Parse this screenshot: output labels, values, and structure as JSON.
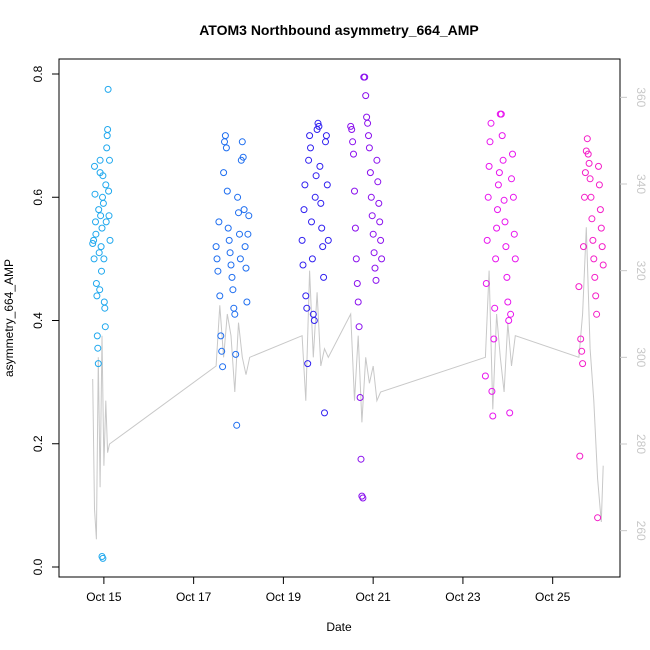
{
  "chart_data": {
    "type": "scatter",
    "title": "ATOM3 Northbound asymmetry_664_AMP",
    "xlabel": "Date",
    "ylabel": "asymmetry_664_AMP",
    "xlim": [
      "2023-10-14T00:00",
      "2023-10-26T12:00"
    ],
    "ylim": [
      0.0,
      0.8
    ],
    "y2lim": [
      250,
      370
    ],
    "x_ticks": [
      {
        "date": "2023-10-15T00:00",
        "label": "Oct 15"
      },
      {
        "date": "2023-10-17T00:00",
        "label": "Oct 17"
      },
      {
        "date": "2023-10-19T00:00",
        "label": "Oct 19"
      },
      {
        "date": "2023-10-21T00:00",
        "label": "Oct 21"
      },
      {
        "date": "2023-10-23T00:00",
        "label": "Oct 23"
      },
      {
        "date": "2023-10-25T00:00",
        "label": "Oct 25"
      }
    ],
    "y_ticks": [
      "0.0",
      "0.2",
      "0.4",
      "0.6",
      "0.8"
    ],
    "y2_ticks": [
      "260",
      "280",
      "300",
      "320",
      "340",
      "360"
    ],
    "grid": false,
    "point_style": "open-circle",
    "line_color": "#c8c8c8",
    "series": [
      {
        "color": "#1fa8ee",
        "points": [
          [
            "2023-10-14T18:00",
            0.525
          ],
          [
            "2023-10-14T18:30",
            0.53
          ],
          [
            "2023-10-14T18:45",
            0.5
          ],
          [
            "2023-10-14T19:00",
            0.65
          ],
          [
            "2023-10-14T19:15",
            0.605
          ],
          [
            "2023-10-14T19:30",
            0.56
          ],
          [
            "2023-10-14T19:45",
            0.54
          ],
          [
            "2023-10-14T20:00",
            0.46
          ],
          [
            "2023-10-14T20:15",
            0.44
          ],
          [
            "2023-10-14T20:30",
            0.375
          ],
          [
            "2023-10-14T20:45",
            0.355
          ],
          [
            "2023-10-14T21:00",
            0.33
          ],
          [
            "2023-10-14T21:15",
            0.58
          ],
          [
            "2023-10-14T21:30",
            0.51
          ],
          [
            "2023-10-14T21:45",
            0.45
          ],
          [
            "2023-10-14T22:00",
            0.66
          ],
          [
            "2023-10-14T22:15",
            0.57
          ],
          [
            "2023-10-14T22:30",
            0.52
          ],
          [
            "2023-10-14T22:45",
            0.48
          ],
          [
            "2023-10-14T23:00",
            0.55
          ],
          [
            "2023-10-14T23:15",
            0.6
          ],
          [
            "2023-10-14T23:30",
            0.635
          ],
          [
            "2023-10-14T23:45",
            0.59
          ],
          [
            "2023-10-15T00:00",
            0.5
          ],
          [
            "2023-10-15T00:15",
            0.43
          ],
          [
            "2023-10-15T00:30",
            0.42
          ],
          [
            "2023-10-15T00:45",
            0.39
          ],
          [
            "2023-10-15T01:00",
            0.62
          ],
          [
            "2023-10-15T01:15",
            0.56
          ],
          [
            "2023-10-15T01:30",
            0.68
          ],
          [
            "2023-10-15T01:45",
            0.7
          ],
          [
            "2023-10-15T02:00",
            0.71
          ],
          [
            "2023-10-15T02:15",
            0.775
          ],
          [
            "2023-10-15T02:30",
            0.61
          ],
          [
            "2023-10-15T02:45",
            0.57
          ],
          [
            "2023-10-15T03:00",
            0.66
          ],
          [
            "2023-10-15T03:15",
            0.53
          ],
          [
            "2023-10-14T23:00",
            0.017
          ],
          [
            "2023-10-14T23:30",
            0.014
          ],
          [
            "2023-10-14T22:00",
            0.64
          ]
        ]
      },
      {
        "color": "#1e6ef0",
        "points": [
          [
            "2023-10-17T12:00",
            0.52
          ],
          [
            "2023-10-17T12:30",
            0.5
          ],
          [
            "2023-10-17T13:00",
            0.48
          ],
          [
            "2023-10-17T13:30",
            0.56
          ],
          [
            "2023-10-17T14:00",
            0.44
          ],
          [
            "2023-10-17T14:30",
            0.375
          ],
          [
            "2023-10-17T15:00",
            0.35
          ],
          [
            "2023-10-17T15:30",
            0.325
          ],
          [
            "2023-10-17T16:00",
            0.64
          ],
          [
            "2023-10-17T16:30",
            0.69
          ],
          [
            "2023-10-17T17:00",
            0.7
          ],
          [
            "2023-10-17T17:30",
            0.68
          ],
          [
            "2023-10-17T18:00",
            0.61
          ],
          [
            "2023-10-17T18:30",
            0.55
          ],
          [
            "2023-10-17T19:00",
            0.53
          ],
          [
            "2023-10-17T19:30",
            0.51
          ],
          [
            "2023-10-17T20:00",
            0.49
          ],
          [
            "2023-10-17T20:30",
            0.47
          ],
          [
            "2023-10-17T21:00",
            0.45
          ],
          [
            "2023-10-17T21:30",
            0.42
          ],
          [
            "2023-10-17T22:00",
            0.41
          ],
          [
            "2023-10-17T22:30",
            0.345
          ],
          [
            "2023-10-17T23:00",
            0.23
          ],
          [
            "2023-10-17T23:30",
            0.6
          ],
          [
            "2023-10-18T00:00",
            0.575
          ],
          [
            "2023-10-18T00:30",
            0.54
          ],
          [
            "2023-10-18T01:00",
            0.5
          ],
          [
            "2023-10-18T01:30",
            0.66
          ],
          [
            "2023-10-18T02:00",
            0.69
          ],
          [
            "2023-10-18T02:30",
            0.665
          ],
          [
            "2023-10-18T03:00",
            0.58
          ],
          [
            "2023-10-18T03:30",
            0.52
          ],
          [
            "2023-10-18T04:00",
            0.485
          ],
          [
            "2023-10-18T04:30",
            0.43
          ],
          [
            "2023-10-18T05:00",
            0.54
          ],
          [
            "2023-10-18T05:30",
            0.57
          ]
        ]
      },
      {
        "color": "#3020f0",
        "points": [
          [
            "2023-10-19T10:00",
            0.53
          ],
          [
            "2023-10-19T10:30",
            0.49
          ],
          [
            "2023-10-19T11:00",
            0.58
          ],
          [
            "2023-10-19T11:30",
            0.62
          ],
          [
            "2023-10-19T12:00",
            0.44
          ],
          [
            "2023-10-19T12:30",
            0.42
          ],
          [
            "2023-10-19T13:00",
            0.33
          ],
          [
            "2023-10-19T13:30",
            0.66
          ],
          [
            "2023-10-19T14:00",
            0.7
          ],
          [
            "2023-10-19T14:30",
            0.68
          ],
          [
            "2023-10-19T15:00",
            0.56
          ],
          [
            "2023-10-19T15:30",
            0.5
          ],
          [
            "2023-10-19T16:00",
            0.41
          ],
          [
            "2023-10-19T16:30",
            0.4
          ],
          [
            "2023-10-19T17:00",
            0.6
          ],
          [
            "2023-10-19T17:30",
            0.635
          ],
          [
            "2023-10-19T18:00",
            0.71
          ],
          [
            "2023-10-19T18:30",
            0.72
          ],
          [
            "2023-10-19T19:00",
            0.715
          ],
          [
            "2023-10-19T19:30",
            0.65
          ],
          [
            "2023-10-19T20:00",
            0.59
          ],
          [
            "2023-10-19T20:30",
            0.55
          ],
          [
            "2023-10-19T21:00",
            0.52
          ],
          [
            "2023-10-19T21:30",
            0.47
          ],
          [
            "2023-10-19T22:00",
            0.25
          ],
          [
            "2023-10-19T22:30",
            0.69
          ],
          [
            "2023-10-19T23:00",
            0.7
          ],
          [
            "2023-10-19T23:30",
            0.62
          ],
          [
            "2023-10-20T00:00",
            0.53
          ]
        ]
      },
      {
        "color": "#8a10ee",
        "points": [
          [
            "2023-10-20T12:00",
            0.715
          ],
          [
            "2023-10-20T12:30",
            0.71
          ],
          [
            "2023-10-20T13:00",
            0.69
          ],
          [
            "2023-10-20T13:30",
            0.67
          ],
          [
            "2023-10-20T14:00",
            0.61
          ],
          [
            "2023-10-20T14:30",
            0.55
          ],
          [
            "2023-10-20T15:00",
            0.5
          ],
          [
            "2023-10-20T15:30",
            0.46
          ],
          [
            "2023-10-20T16:00",
            0.43
          ],
          [
            "2023-10-20T16:30",
            0.39
          ],
          [
            "2023-10-20T17:00",
            0.275
          ],
          [
            "2023-10-20T17:30",
            0.175
          ],
          [
            "2023-10-20T18:00",
            0.115
          ],
          [
            "2023-10-20T18:30",
            0.112
          ],
          [
            "2023-10-20T19:00",
            0.795
          ],
          [
            "2023-10-20T19:30",
            0.795
          ],
          [
            "2023-10-20T20:00",
            0.765
          ],
          [
            "2023-10-20T20:30",
            0.73
          ],
          [
            "2023-10-20T21:00",
            0.72
          ],
          [
            "2023-10-20T21:30",
            0.7
          ],
          [
            "2023-10-20T22:00",
            0.68
          ],
          [
            "2023-10-20T22:30",
            0.64
          ],
          [
            "2023-10-20T23:00",
            0.6
          ],
          [
            "2023-10-20T23:30",
            0.57
          ],
          [
            "2023-10-21T00:00",
            0.54
          ],
          [
            "2023-10-21T00:30",
            0.51
          ],
          [
            "2023-10-21T01:00",
            0.485
          ],
          [
            "2023-10-21T01:30",
            0.465
          ],
          [
            "2023-10-21T02:00",
            0.66
          ],
          [
            "2023-10-21T02:30",
            0.625
          ],
          [
            "2023-10-21T03:00",
            0.59
          ],
          [
            "2023-10-21T03:30",
            0.56
          ],
          [
            "2023-10-21T04:00",
            0.53
          ],
          [
            "2023-10-21T04:30",
            0.5
          ]
        ]
      },
      {
        "color": "#e814ee",
        "points": [
          [
            "2023-10-23T12:00",
            0.31
          ],
          [
            "2023-10-23T12:30",
            0.46
          ],
          [
            "2023-10-23T13:00",
            0.53
          ],
          [
            "2023-10-23T13:30",
            0.6
          ],
          [
            "2023-10-23T14:00",
            0.65
          ],
          [
            "2023-10-23T14:30",
            0.69
          ],
          [
            "2023-10-23T15:00",
            0.72
          ],
          [
            "2023-10-23T15:30",
            0.285
          ],
          [
            "2023-10-23T16:00",
            0.245
          ],
          [
            "2023-10-23T16:30",
            0.37
          ],
          [
            "2023-10-23T17:00",
            0.42
          ],
          [
            "2023-10-23T17:30",
            0.5
          ],
          [
            "2023-10-23T18:00",
            0.55
          ],
          [
            "2023-10-23T18:30",
            0.58
          ],
          [
            "2023-10-23T19:00",
            0.62
          ],
          [
            "2023-10-23T19:30",
            0.64
          ],
          [
            "2023-10-23T20:00",
            0.735
          ],
          [
            "2023-10-23T20:30",
            0.735
          ],
          [
            "2023-10-23T21:00",
            0.7
          ],
          [
            "2023-10-23T21:30",
            0.66
          ],
          [
            "2023-10-23T22:00",
            0.595
          ],
          [
            "2023-10-23T22:30",
            0.56
          ],
          [
            "2023-10-23T23:00",
            0.52
          ],
          [
            "2023-10-23T23:30",
            0.47
          ],
          [
            "2023-10-24T00:00",
            0.43
          ],
          [
            "2023-10-24T00:30",
            0.4
          ],
          [
            "2023-10-24T01:00",
            0.25
          ],
          [
            "2023-10-24T01:30",
            0.41
          ],
          [
            "2023-10-24T02:00",
            0.63
          ],
          [
            "2023-10-24T02:30",
            0.67
          ],
          [
            "2023-10-24T03:00",
            0.6
          ],
          [
            "2023-10-24T03:30",
            0.54
          ],
          [
            "2023-10-24T04:00",
            0.5
          ]
        ]
      },
      {
        "color": "#f41ec8",
        "points": [
          [
            "2023-10-25T14:00",
            0.455
          ],
          [
            "2023-10-25T14:30",
            0.18
          ],
          [
            "2023-10-25T15:00",
            0.37
          ],
          [
            "2023-10-25T15:30",
            0.35
          ],
          [
            "2023-10-25T16:00",
            0.33
          ],
          [
            "2023-10-25T16:30",
            0.52
          ],
          [
            "2023-10-25T17:00",
            0.6
          ],
          [
            "2023-10-25T17:30",
            0.64
          ],
          [
            "2023-10-25T18:00",
            0.675
          ],
          [
            "2023-10-25T18:30",
            0.695
          ],
          [
            "2023-10-25T19:00",
            0.67
          ],
          [
            "2023-10-25T19:30",
            0.655
          ],
          [
            "2023-10-25T20:00",
            0.63
          ],
          [
            "2023-10-25T20:30",
            0.6
          ],
          [
            "2023-10-25T21:00",
            0.565
          ],
          [
            "2023-10-25T21:30",
            0.53
          ],
          [
            "2023-10-25T22:00",
            0.5
          ],
          [
            "2023-10-25T22:30",
            0.47
          ],
          [
            "2023-10-25T23:00",
            0.44
          ],
          [
            "2023-10-25T23:30",
            0.41
          ],
          [
            "2023-10-26T00:00",
            0.08
          ],
          [
            "2023-10-26T00:30",
            0.65
          ],
          [
            "2023-10-26T01:00",
            0.62
          ],
          [
            "2023-10-26T01:30",
            0.58
          ],
          [
            "2023-10-26T02:00",
            0.55
          ],
          [
            "2023-10-26T02:30",
            0.52
          ],
          [
            "2023-10-26T03:00",
            0.49
          ]
        ]
      }
    ],
    "line_series": [
      [
        "2023-10-14T18:00",
        295
      ],
      [
        "2023-10-14T19:00",
        265
      ],
      [
        "2023-10-14T20:00",
        258
      ],
      [
        "2023-10-14T21:00",
        300
      ],
      [
        "2023-10-14T22:00",
        270
      ],
      [
        "2023-10-14T23:00",
        305
      ],
      [
        "2023-10-15T00:00",
        275
      ],
      [
        "2023-10-15T01:00",
        290
      ],
      [
        "2023-10-15T02:00",
        278
      ],
      [
        "2023-10-15T03:00",
        280
      ],
      [
        "2023-10-17T12:00",
        298
      ],
      [
        "2023-10-17T14:00",
        312
      ],
      [
        "2023-10-17T16:00",
        300
      ],
      [
        "2023-10-17T18:00",
        310
      ],
      [
        "2023-10-17T20:00",
        305
      ],
      [
        "2023-10-17T22:00",
        292
      ],
      [
        "2023-10-18T00:00",
        308
      ],
      [
        "2023-10-18T02:00",
        300
      ],
      [
        "2023-10-18T04:00",
        296
      ],
      [
        "2023-10-18T06:00",
        300
      ],
      [
        "2023-10-19T10:00",
        305
      ],
      [
        "2023-10-19T12:00",
        290
      ],
      [
        "2023-10-19T14:00",
        320
      ],
      [
        "2023-10-19T16:00",
        300
      ],
      [
        "2023-10-19T18:00",
        315
      ],
      [
        "2023-10-19T20:00",
        298
      ],
      [
        "2023-10-19T22:00",
        302
      ],
      [
        "2023-10-20T00:00",
        300
      ],
      [
        "2023-10-20T12:00",
        310
      ],
      [
        "2023-10-20T14:00",
        290
      ],
      [
        "2023-10-20T16:00",
        305
      ],
      [
        "2023-10-20T18:00",
        285
      ],
      [
        "2023-10-20T20:00",
        300
      ],
      [
        "2023-10-20T22:00",
        294
      ],
      [
        "2023-10-21T00:00",
        298
      ],
      [
        "2023-10-21T02:00",
        290
      ],
      [
        "2023-10-21T04:00",
        292
      ],
      [
        "2023-10-23T12:00",
        300
      ],
      [
        "2023-10-23T14:00",
        320
      ],
      [
        "2023-10-23T16:00",
        288
      ],
      [
        "2023-10-23T18:00",
        310
      ],
      [
        "2023-10-23T20:00",
        300
      ],
      [
        "2023-10-23T22:00",
        292
      ],
      [
        "2023-10-24T00:00",
        308
      ],
      [
        "2023-10-24T02:00",
        298
      ],
      [
        "2023-10-24T04:00",
        305
      ],
      [
        "2023-10-25T14:00",
        300
      ],
      [
        "2023-10-25T16:00",
        310
      ],
      [
        "2023-10-25T18:00",
        330
      ],
      [
        "2023-10-25T20:00",
        302
      ],
      [
        "2023-10-25T22:00",
        290
      ],
      [
        "2023-10-26T00:00",
        272
      ],
      [
        "2023-10-26T02:00",
        262
      ],
      [
        "2023-10-26T03:00",
        275
      ]
    ]
  }
}
